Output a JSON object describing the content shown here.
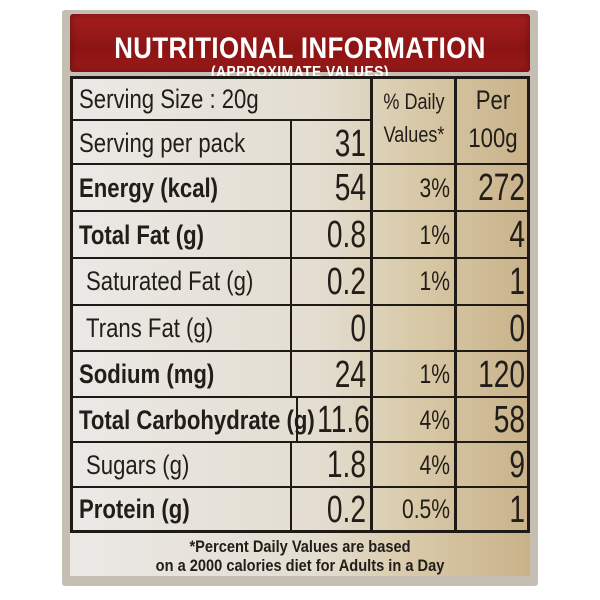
{
  "header": {
    "title": "NUTRITIONAL INFORMATION",
    "subtitle": "(APPROXIMATE VALUES)"
  },
  "columns": {
    "daily_values": "% Daily Values*",
    "daily_values_line1": "% Daily",
    "daily_values_line2": "Values*",
    "per_100g_line1": "Per",
    "per_100g_line2": "100g"
  },
  "serving_size": "Serving Size : 20g",
  "serving_per_pack": {
    "label": "Serving per pack",
    "value": "31"
  },
  "rows": [
    {
      "label": "Energy (kcal)",
      "bold": true,
      "serving": "54",
      "dv": "3%",
      "per100": "272"
    },
    {
      "label": "Total Fat (g)",
      "bold": true,
      "serving": "0.8",
      "dv": "1%",
      "per100": "4"
    },
    {
      "label": "Saturated Fat (g)",
      "bold": false,
      "serving": "0.2",
      "dv": "1%",
      "per100": "1"
    },
    {
      "label": "Trans Fat (g)",
      "bold": false,
      "serving": "0",
      "dv": "",
      "per100": "0"
    },
    {
      "label": "Sodium (mg)",
      "bold": true,
      "serving": "24",
      "dv": "1%",
      "per100": "120"
    },
    {
      "label": "Total Carbohydrate (g)",
      "bold": true,
      "serving": "11.6",
      "dv": "4%",
      "per100": "58"
    },
    {
      "label": "Sugars (g)",
      "bold": false,
      "serving": "1.8",
      "dv": "4%",
      "per100": "9"
    },
    {
      "label": "Protein (g)",
      "bold": true,
      "serving": "0.2",
      "dv": "0.5%",
      "per100": "1"
    }
  ],
  "footnote": {
    "line1": "*Percent Daily Values are based",
    "line2": "on a 2000 calories diet for Adults in a Day"
  }
}
